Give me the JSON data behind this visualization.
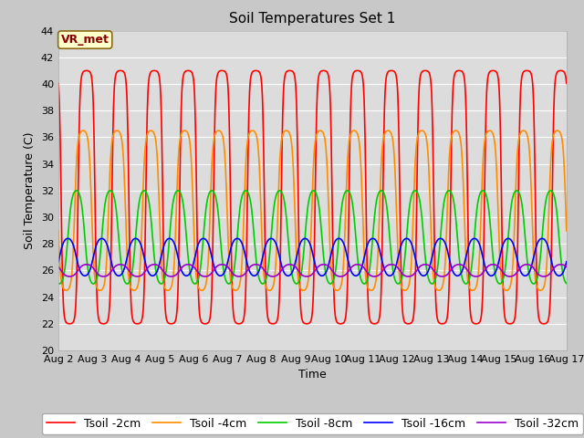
{
  "title": "Soil Temperatures Set 1",
  "xlabel": "Time",
  "ylabel": "Soil Temperature (C)",
  "ylim": [
    20,
    44
  ],
  "xlim_days": [
    0,
    15
  ],
  "x_tick_labels": [
    "Aug 2",
    "Aug 3",
    "Aug 4",
    "Aug 5",
    "Aug 6",
    "Aug 7",
    "Aug 8",
    "Aug 9",
    "Aug 10",
    "Aug 11",
    "Aug 12",
    "Aug 13",
    "Aug 14",
    "Aug 15",
    "Aug 16",
    "Aug 17"
  ],
  "series": [
    {
      "label": "Tsoil -2cm",
      "color": "#FF0000",
      "mean": 31.5,
      "amp": 9.5,
      "phase_shift": 0.0,
      "sharpness": 3.0
    },
    {
      "label": "Tsoil -4cm",
      "color": "#FF8C00",
      "mean": 30.5,
      "amp": 6.0,
      "phase_shift": 0.1,
      "sharpness": 2.0
    },
    {
      "label": "Tsoil -8cm",
      "color": "#00CC00",
      "mean": 28.5,
      "amp": 3.5,
      "phase_shift": 0.3,
      "sharpness": 1.2
    },
    {
      "label": "Tsoil -16cm",
      "color": "#0000FF",
      "mean": 27.0,
      "amp": 1.4,
      "phase_shift": 0.55,
      "sharpness": 1.0
    },
    {
      "label": "Tsoil -32cm",
      "color": "#9900CC",
      "mean": 26.0,
      "amp": 0.45,
      "phase_shift": 1.0,
      "sharpness": 1.0
    }
  ],
  "annotation_text": "VR_met",
  "annotation_bg": "#FFFFCC",
  "annotation_border": "#8B6914",
  "fig_facecolor": "#C8C8C8",
  "plot_bg": "#DCDCDC",
  "title_fontsize": 11,
  "axis_fontsize": 9,
  "tick_fontsize": 8,
  "legend_fontsize": 9,
  "line_width": 1.2,
  "samples_per_day": 96
}
